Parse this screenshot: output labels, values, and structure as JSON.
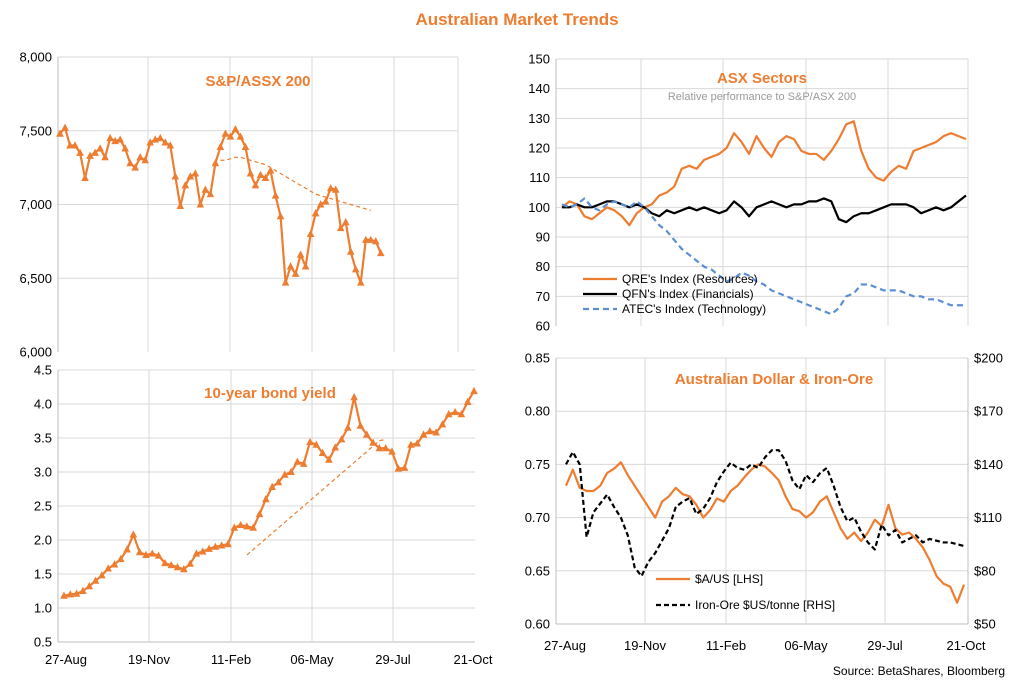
{
  "page": {
    "title": "Australian Market Trends",
    "source": "Source: BetaShares, Bloomberg"
  },
  "colors": {
    "orange": "#ED7D31",
    "black": "#000000",
    "blue": "#5B8FD4",
    "grid": "#d9d9d9"
  },
  "chart_data": [
    {
      "id": "asx200",
      "type": "line",
      "title": "S&P/ASSX 200",
      "ylim": [
        6000,
        8000
      ],
      "yticks": [
        "8,000",
        "7,500",
        "7,000",
        "6,500",
        "6,000"
      ],
      "grid": true,
      "x": [
        0,
        3,
        6,
        9,
        12,
        15,
        18,
        21,
        24,
        27,
        30,
        33,
        36,
        39,
        42,
        45,
        48,
        51,
        54,
        57,
        60,
        63,
        66,
        69,
        72,
        75,
        78,
        81,
        84,
        87,
        90,
        93,
        96,
        99,
        102,
        105,
        108,
        111,
        114,
        117,
        120,
        123,
        126,
        129,
        132,
        135,
        138,
        141,
        144,
        147,
        150,
        153,
        156,
        159,
        162,
        165,
        168,
        171,
        174,
        177,
        180,
        183,
        186,
        189,
        192,
        195,
        198,
        201,
        204,
        207,
        210,
        213,
        216,
        219,
        222,
        225,
        228,
        231,
        234,
        237
      ],
      "series": [
        {
          "values": [
            7480,
            7520,
            7400,
            7400,
            7350,
            7180,
            7330,
            7350,
            7380,
            7320,
            7450,
            7430,
            7440,
            7380,
            7280,
            7250,
            7320,
            7300,
            7420,
            7440,
            7450,
            7420,
            7400,
            7190,
            6990,
            7130,
            7190,
            7210,
            7000,
            7100,
            7070,
            7280,
            7390,
            7480,
            7460,
            7510,
            7460,
            7390,
            7210,
            7130,
            7200,
            7180,
            7230,
            7060,
            6920,
            6470,
            6580,
            6530,
            6660,
            6580,
            6800,
            6940,
            7000,
            7020,
            7110,
            7100,
            6840,
            6880,
            6680,
            6560,
            6470,
            6760,
            6760,
            6750,
            6670,
            null,
            null,
            null,
            null,
            null,
            null,
            null,
            null,
            null,
            null,
            null,
            null,
            null,
            null,
            null
          ],
          "style": "solid-marker"
        },
        {
          "values": [
            null,
            null,
            null,
            null,
            null,
            null,
            null,
            null,
            null,
            null,
            null,
            null,
            null,
            null,
            null,
            null,
            null,
            null,
            null,
            null,
            null,
            null,
            null,
            null,
            null,
            null,
            null,
            null,
            null,
            null,
            null,
            null,
            7300,
            7300,
            7310,
            7320,
            7320,
            7310,
            7300,
            7290,
            7280,
            7270,
            7250,
            7230,
            7210,
            7190,
            7170,
            7150,
            7130,
            7110,
            7090,
            7070,
            7060,
            7050,
            7040,
            7030,
            7020,
            7010,
            7000,
            6990,
            6980,
            6970,
            6960,
            null,
            null,
            null,
            null,
            null,
            null,
            null,
            null,
            null,
            null,
            null,
            null,
            null,
            null,
            null,
            null,
            null
          ],
          "style": "dashed"
        }
      ]
    },
    {
      "id": "bond",
      "type": "line",
      "title": "10-year bond yield",
      "xlabels": [
        "27-Aug",
        "19-Nov",
        "11-Feb",
        "06-May",
        "29-Jul",
        "21-Oct"
      ],
      "ylim": [
        0.5,
        4.5
      ],
      "yticks": [
        "4.5",
        "4.0",
        "3.5",
        "3.0",
        "2.5",
        "2.0",
        "1.5",
        "1.0",
        "0.5"
      ],
      "grid": true,
      "series": [
        {
          "values": [
            1.18,
            1.2,
            1.21,
            1.25,
            1.32,
            1.4,
            1.48,
            1.58,
            1.64,
            1.72,
            1.86,
            2.08,
            1.82,
            1.78,
            1.8,
            1.77,
            1.66,
            1.63,
            1.6,
            1.57,
            1.65,
            1.8,
            1.83,
            1.87,
            1.9,
            1.92,
            1.94,
            2.18,
            2.22,
            2.2,
            2.18,
            2.38,
            2.6,
            2.78,
            2.85,
            2.96,
            3.0,
            3.15,
            3.12,
            3.44,
            3.4,
            3.28,
            3.18,
            3.36,
            3.48,
            3.65,
            4.1,
            3.68,
            3.55,
            3.43,
            3.35,
            3.35,
            3.3,
            3.05,
            3.06,
            3.4,
            3.42,
            3.55,
            3.6,
            3.58,
            3.7,
            3.85,
            3.88,
            3.85,
            4.03,
            4.19
          ],
          "style": "solid-marker"
        },
        {
          "values": [
            null,
            null,
            null,
            null,
            null,
            null,
            null,
            null,
            null,
            null,
            null,
            null,
            null,
            null,
            null,
            null,
            null,
            null,
            null,
            null,
            null,
            null,
            null,
            null,
            null,
            null,
            null,
            null,
            null,
            1.78,
            1.86,
            1.94,
            2.02,
            2.1,
            2.18,
            2.26,
            2.34,
            2.42,
            2.5,
            2.58,
            2.66,
            2.74,
            2.82,
            2.9,
            2.98,
            3.06,
            3.14,
            3.22,
            3.3,
            3.38,
            3.46,
            3.48
          ],
          "style": "dashed"
        }
      ]
    },
    {
      "id": "sectors",
      "type": "line",
      "title": "ASX Sectors",
      "subtitle": "Relative performance to S&P/ASX 200",
      "ylim": [
        60,
        150
      ],
      "yticks": [
        "150",
        "140",
        "130",
        "120",
        "110",
        "100",
        "90",
        "80",
        "70",
        "60"
      ],
      "grid": true,
      "series": [
        {
          "name": "QRE's Index (Resources)",
          "values": [
            100,
            102,
            101,
            97,
            96,
            98,
            100,
            99,
            97,
            94,
            98,
            100,
            101,
            104,
            105,
            107,
            113,
            114,
            113,
            116,
            117,
            118,
            120,
            125,
            122,
            118,
            124,
            120,
            117,
            122,
            124,
            123,
            119,
            118,
            118,
            116,
            119,
            123,
            128,
            129,
            119,
            113,
            110,
            109,
            112,
            114,
            113,
            119,
            120,
            121,
            122,
            124,
            125,
            124,
            123
          ],
          "color": "#ED7D31",
          "style": "solid"
        },
        {
          "name": "QFN's Index (Financials)",
          "values": [
            100,
            100,
            101,
            100,
            100,
            101,
            102,
            102,
            101,
            100,
            101,
            100,
            98,
            97,
            99,
            98,
            99,
            100,
            99,
            100,
            99,
            98,
            99,
            102,
            100,
            97,
            100,
            101,
            102,
            101,
            100,
            101,
            101,
            102,
            102,
            103,
            102,
            96,
            95,
            97,
            98,
            98,
            99,
            100,
            101,
            101,
            101,
            100,
            98,
            99,
            100,
            99,
            100,
            102,
            104
          ],
          "color": "#000000",
          "style": "solid"
        },
        {
          "name": "ATEC's Index (Technology)",
          "values": [
            101,
            100,
            101,
            103,
            100,
            99,
            101,
            102,
            101,
            100,
            102,
            100,
            97,
            94,
            92,
            89,
            86,
            84,
            82,
            80,
            79,
            77,
            75,
            76,
            78,
            77,
            75,
            74,
            72,
            71,
            70,
            69,
            68,
            67,
            66,
            65,
            64,
            66,
            70,
            71,
            74,
            74,
            73,
            72,
            72,
            72,
            71,
            70,
            70,
            69,
            69,
            68,
            67,
            67,
            67
          ],
          "color": "#5B8FD4",
          "style": "dashed"
        }
      ]
    },
    {
      "id": "aud",
      "type": "line",
      "title": "Australian Dollar & Iron-Ore",
      "xlabels": [
        "27-Aug",
        "19-Nov",
        "11-Feb",
        "06-May",
        "29-Jul",
        "21-Oct"
      ],
      "ylim": [
        0.6,
        0.85
      ],
      "yticks": [
        "0.85",
        "0.80",
        "0.75",
        "0.70",
        "0.65",
        "0.60"
      ],
      "y2lim": [
        50,
        200
      ],
      "y2ticks": [
        "$200",
        "$170",
        "$140",
        "$110",
        "$80",
        "$50"
      ],
      "grid": true,
      "series": [
        {
          "name": "$A/US [LHS]",
          "values": [
            0.73,
            0.745,
            0.728,
            0.725,
            0.725,
            0.73,
            0.742,
            0.746,
            0.752,
            0.74,
            0.73,
            0.72,
            0.71,
            0.7,
            0.715,
            0.72,
            0.728,
            0.722,
            0.72,
            0.712,
            0.7,
            0.707,
            0.718,
            0.715,
            0.725,
            0.73,
            0.738,
            0.745,
            0.75,
            0.748,
            0.742,
            0.735,
            0.72,
            0.708,
            0.706,
            0.7,
            0.705,
            0.715,
            0.72,
            0.705,
            0.69,
            0.68,
            0.686,
            0.678,
            0.686,
            0.698,
            0.692,
            0.712,
            0.69,
            0.684,
            0.686,
            0.68,
            0.672,
            0.66,
            0.645,
            0.638,
            0.635,
            0.62,
            0.637
          ],
          "axis": "left",
          "color": "#ED7D31",
          "style": "solid"
        },
        {
          "name": "Iron-Ore $US/tonne [RHS]",
          "values": [
            140,
            147,
            140,
            99,
            113,
            118,
            123,
            116,
            110,
            100,
            82,
            77,
            85,
            90,
            97,
            104,
            116,
            119,
            121,
            112,
            115,
            121,
            130,
            136,
            141,
            138,
            137,
            140,
            138,
            144,
            148,
            148,
            142,
            131,
            126,
            134,
            130,
            135,
            138,
            128,
            116,
            108,
            110,
            102,
            96,
            92,
            106,
            100,
            103,
            96,
            98,
            100,
            96,
            98,
            97,
            96,
            96,
            95,
            94
          ],
          "axis": "right",
          "color": "#000000",
          "style": "dashed"
        }
      ]
    }
  ]
}
